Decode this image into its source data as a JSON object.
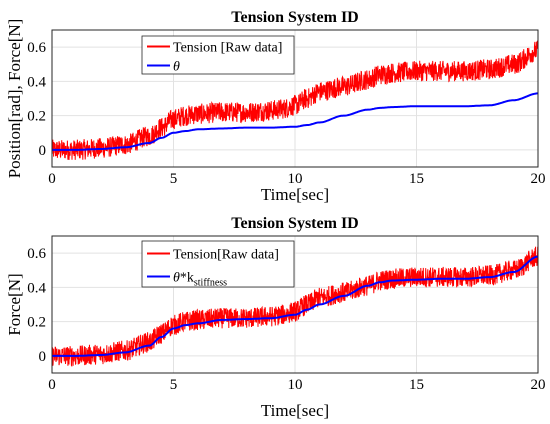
{
  "chart_data": [
    {
      "type": "line",
      "title": "Tension System ID",
      "xlabel": "Time[sec]",
      "ylabel": "Position[rad], Force[N]",
      "xlim": [
        0,
        20
      ],
      "ylim": [
        -0.1,
        0.7
      ],
      "xticks": [
        "0",
        "5",
        "10",
        "15",
        "20"
      ],
      "yticks": [
        "0",
        "0.2",
        "0.4",
        "0.6"
      ],
      "grid": true,
      "legend_position": "top-left",
      "series": [
        {
          "name": "Tension [Raw data]",
          "color": "#ff0000",
          "noise_amplitude": 0.06,
          "x": [
            0,
            1,
            2,
            3,
            4,
            4.5,
            5,
            5.5,
            6,
            7,
            8,
            9,
            9.5,
            10,
            10.5,
            11,
            12,
            13,
            13.5,
            14,
            15,
            16,
            17,
            18,
            19,
            20
          ],
          "y": [
            0.0,
            0.0,
            0.01,
            0.03,
            0.08,
            0.13,
            0.18,
            0.2,
            0.21,
            0.22,
            0.22,
            0.23,
            0.24,
            0.26,
            0.3,
            0.34,
            0.37,
            0.41,
            0.44,
            0.45,
            0.46,
            0.46,
            0.46,
            0.47,
            0.5,
            0.58
          ]
        },
        {
          "name": "θ",
          "color": "#0000ff",
          "x": [
            0,
            1,
            2,
            3,
            4,
            4.5,
            5,
            5.5,
            6,
            7,
            8,
            9,
            10,
            10.5,
            11,
            12,
            13,
            13.5,
            14,
            15,
            16,
            17,
            18,
            19,
            20
          ],
          "y": [
            0.0,
            0.0,
            0.005,
            0.015,
            0.04,
            0.07,
            0.1,
            0.11,
            0.12,
            0.125,
            0.13,
            0.13,
            0.135,
            0.145,
            0.16,
            0.2,
            0.235,
            0.245,
            0.25,
            0.255,
            0.255,
            0.255,
            0.26,
            0.29,
            0.33
          ]
        }
      ]
    },
    {
      "type": "line",
      "title": "Tension System ID",
      "xlabel": "Time[sec]",
      "ylabel": "Force[N]",
      "xlim": [
        0,
        20
      ],
      "ylim": [
        -0.1,
        0.7
      ],
      "xticks": [
        "0",
        "5",
        "10",
        "15",
        "20"
      ],
      "yticks": [
        "0",
        "0.2",
        "0.4",
        "0.6"
      ],
      "grid": true,
      "legend_position": "top-left",
      "series": [
        {
          "name": "Tension[Raw data]",
          "color": "#ff0000",
          "noise_amplitude": 0.06,
          "x": [
            0,
            1,
            2,
            3,
            4,
            4.5,
            5,
            5.5,
            6,
            7,
            8,
            9,
            9.5,
            10,
            10.5,
            11,
            12,
            13,
            13.5,
            14,
            15,
            16,
            17,
            18,
            19,
            20
          ],
          "y": [
            0.0,
            0.0,
            0.01,
            0.03,
            0.08,
            0.13,
            0.18,
            0.2,
            0.21,
            0.22,
            0.22,
            0.23,
            0.24,
            0.26,
            0.3,
            0.34,
            0.37,
            0.41,
            0.44,
            0.45,
            0.46,
            0.46,
            0.46,
            0.47,
            0.5,
            0.58
          ]
        },
        {
          "name": "θ*k",
          "name_subscript": "stiffness",
          "color": "#0000ff",
          "x": [
            0,
            1,
            2,
            3,
            4,
            4.5,
            5,
            5.5,
            6,
            7,
            8,
            9,
            10,
            10.5,
            11,
            12,
            13,
            13.5,
            14,
            15,
            16,
            17,
            18,
            19,
            20
          ],
          "y": [
            0.0,
            0.0,
            0.005,
            0.02,
            0.06,
            0.11,
            0.16,
            0.18,
            0.19,
            0.21,
            0.215,
            0.22,
            0.24,
            0.27,
            0.3,
            0.35,
            0.41,
            0.43,
            0.44,
            0.445,
            0.45,
            0.45,
            0.46,
            0.49,
            0.58
          ]
        }
      ]
    }
  ]
}
